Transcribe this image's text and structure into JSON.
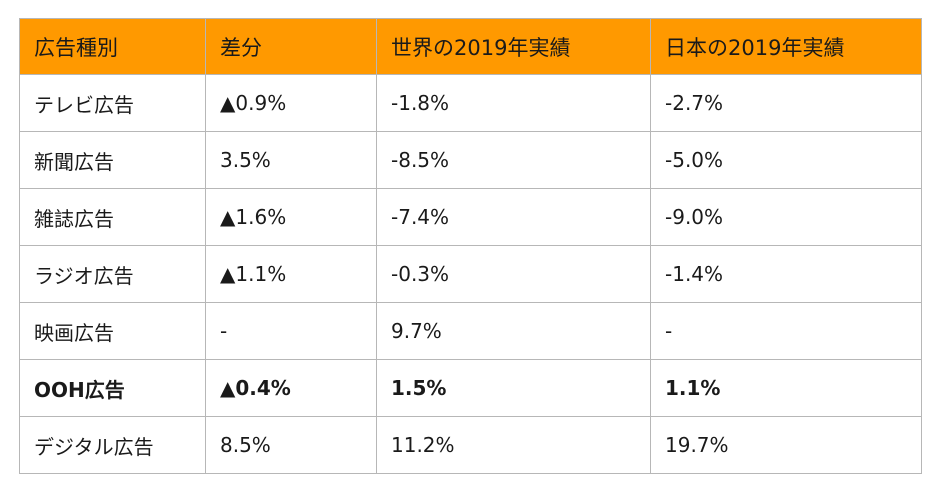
{
  "table": {
    "headers": [
      "広告種別",
      "差分",
      "世界の2019年実績",
      "日本の2019年実績"
    ],
    "rows": [
      {
        "cells": [
          "テレビ広告",
          "▲0.9%",
          "-1.8%",
          "-2.7%"
        ],
        "bold": false
      },
      {
        "cells": [
          "新聞広告",
          "3.5%",
          "-8.5%",
          "-5.0%"
        ],
        "bold": false
      },
      {
        "cells": [
          "雑誌広告",
          "▲1.6%",
          "-7.4%",
          "-9.0%"
        ],
        "bold": false
      },
      {
        "cells": [
          "ラジオ広告",
          "▲1.1%",
          "-0.3%",
          "-1.4%"
        ],
        "bold": false
      },
      {
        "cells": [
          "映画広告",
          "-",
          "9.7%",
          "-"
        ],
        "bold": false
      },
      {
        "cells": [
          "OOH広告",
          "▲0.4%",
          "1.5%",
          "1.1%"
        ],
        "bold": true
      },
      {
        "cells": [
          "デジタル広告",
          "8.5%",
          "11.2%",
          "19.7%"
        ],
        "bold": false
      }
    ]
  },
  "colors": {
    "header_bg": "#ff9900",
    "border": "#b7b7b7"
  }
}
